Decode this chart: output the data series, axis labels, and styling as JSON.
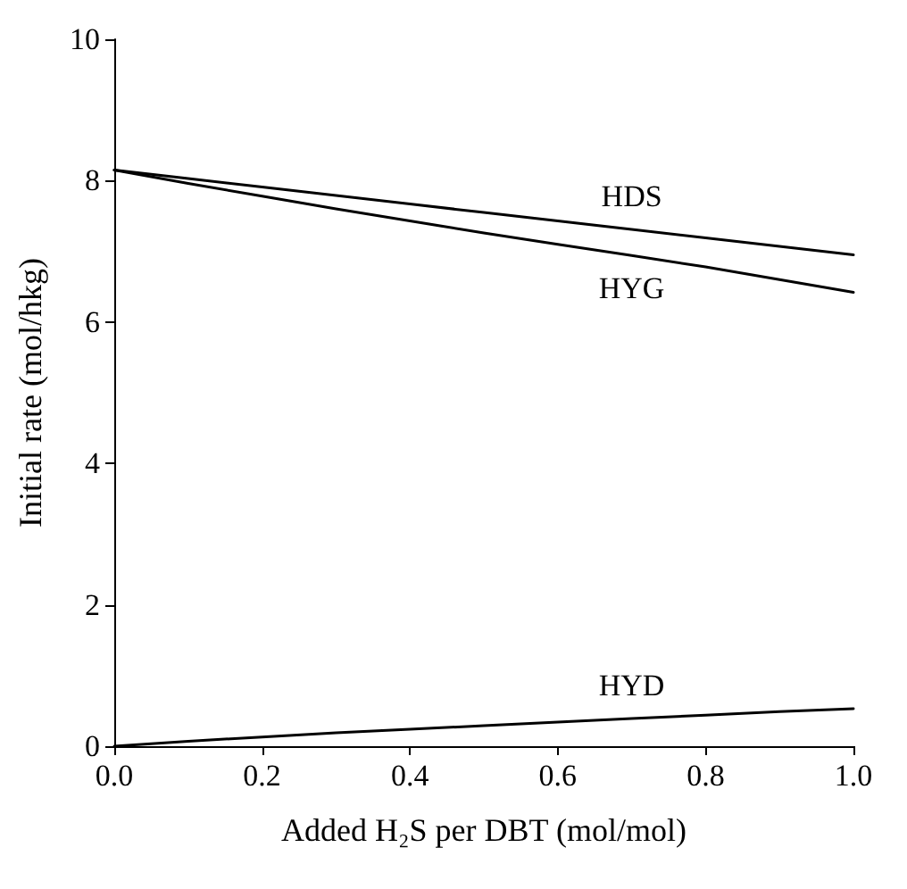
{
  "chart_data": {
    "type": "line",
    "xlabel": "Added H₂S per DBT (mol/mol)",
    "ylabel": "Initial rate (mol/hkg)",
    "x": [
      0,
      0.1,
      0.2,
      0.3,
      0.4,
      0.5,
      0.6,
      0.7,
      0.8,
      0.9,
      1.0
    ],
    "series": [
      {
        "name": "HDS",
        "color": "#000000",
        "values": [
          8.15,
          8.03,
          7.91,
          7.79,
          7.67,
          7.55,
          7.43,
          7.31,
          7.19,
          7.07,
          6.95
        ]
      },
      {
        "name": "HYG",
        "color": "#000000",
        "values": [
          8.15,
          7.96,
          7.78,
          7.6,
          7.43,
          7.26,
          7.1,
          6.94,
          6.78,
          6.6,
          6.42
        ]
      },
      {
        "name": "HYD",
        "color": "#000000",
        "values": [
          0,
          0.07,
          0.13,
          0.19,
          0.24,
          0.29,
          0.34,
          0.39,
          0.44,
          0.49,
          0.53
        ]
      }
    ],
    "xlim": [
      0,
      1
    ],
    "xticks": [
      {
        "value": 0,
        "label": "0.0"
      },
      {
        "value": 0.2,
        "label": "0.2"
      },
      {
        "value": 0.4,
        "label": "0.4"
      },
      {
        "value": 0.6,
        "label": "0.6"
      },
      {
        "value": 0.8,
        "label": "0.8"
      },
      {
        "value": 1,
        "label": "1.0"
      }
    ],
    "ylim": [
      0,
      10
    ],
    "yticks": [
      0,
      2,
      4,
      6,
      8,
      10
    ],
    "grid": false,
    "legend": false,
    "marker": "none",
    "line_style": "solid"
  }
}
